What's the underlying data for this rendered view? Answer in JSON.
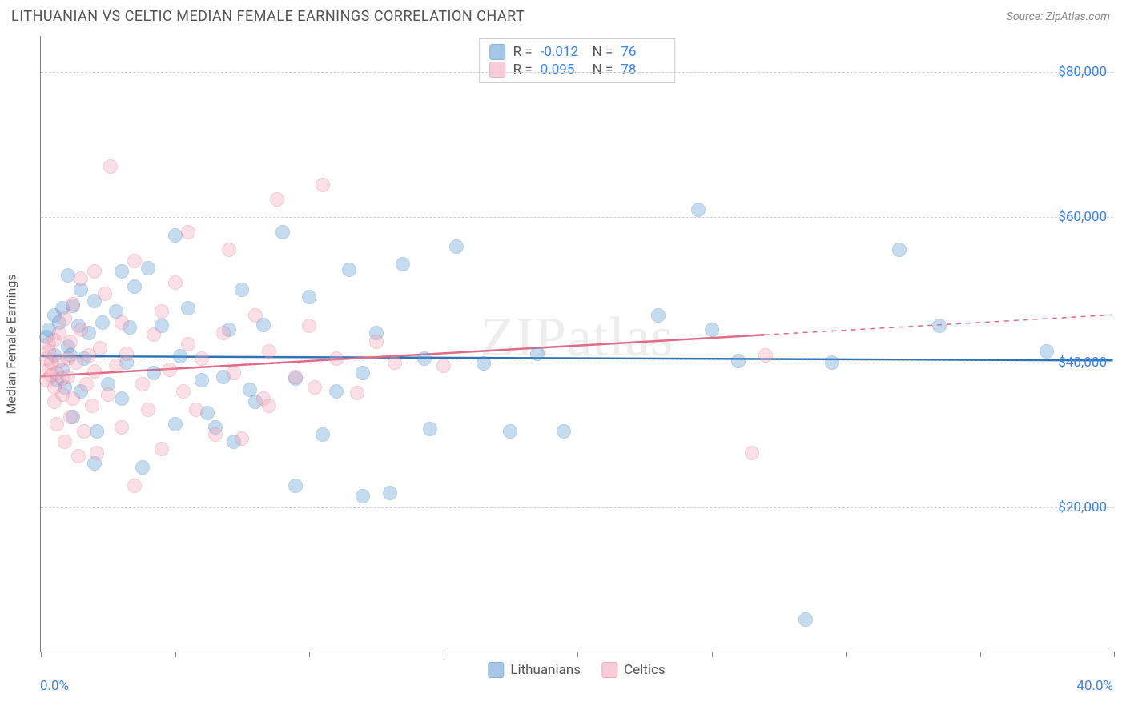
{
  "title": "LITHUANIAN VS CELTIC MEDIAN FEMALE EARNINGS CORRELATION CHART",
  "source": "Source: ZipAtlas.com",
  "watermark": "ZIPatlas",
  "chart": {
    "type": "scatter",
    "background_color": "#ffffff",
    "grid_color": "#d0d0d0",
    "axis_color": "#808080",
    "x_min": 0.0,
    "x_max": 40.0,
    "x_label_min": "0.0%",
    "x_label_max": "40.0%",
    "x_ticks": [
      0,
      5,
      10,
      15,
      20,
      25,
      30,
      35,
      40
    ],
    "y_min": 0,
    "y_max": 85000,
    "y_gridlines": [
      20000,
      40000,
      60000,
      80000
    ],
    "y_tick_labels": [
      "$20,000",
      "$40,000",
      "$60,000",
      "$80,000"
    ],
    "y_axis_title": "Median Female Earnings",
    "marker_radius": 9,
    "marker_fill_opacity": 0.35,
    "marker_stroke_opacity": 0.7,
    "trend_stroke_width": 2.5,
    "series": [
      {
        "name": "Lithuanians",
        "color": "#5b9bd5",
        "stroke": "#2e74b5",
        "r": "-0.012",
        "n": "76",
        "trend": {
          "y_at_xmin": 40800,
          "y_at_xmax": 40200,
          "solid_until_x": 40
        },
        "points": [
          [
            0.2,
            43500
          ],
          [
            0.3,
            44500
          ],
          [
            0.5,
            41000
          ],
          [
            0.5,
            46500
          ],
          [
            0.6,
            37500
          ],
          [
            0.7,
            45500
          ],
          [
            0.8,
            47500
          ],
          [
            0.8,
            39000
          ],
          [
            0.9,
            36500
          ],
          [
            1.0,
            52000
          ],
          [
            1.0,
            42200
          ],
          [
            1.1,
            41000
          ],
          [
            1.2,
            47800
          ],
          [
            1.2,
            32500
          ],
          [
            1.4,
            45000
          ],
          [
            1.5,
            50000
          ],
          [
            1.5,
            36000
          ],
          [
            1.6,
            40500
          ],
          [
            1.8,
            44000
          ],
          [
            2.0,
            48500
          ],
          [
            2.0,
            26000
          ],
          [
            2.1,
            30500
          ],
          [
            2.3,
            45500
          ],
          [
            2.5,
            37000
          ],
          [
            2.8,
            47000
          ],
          [
            3.0,
            52500
          ],
          [
            3.0,
            35000
          ],
          [
            3.2,
            40000
          ],
          [
            3.3,
            44800
          ],
          [
            3.5,
            50500
          ],
          [
            3.8,
            25500
          ],
          [
            4.0,
            53000
          ],
          [
            4.2,
            38500
          ],
          [
            4.5,
            45000
          ],
          [
            5.0,
            57500
          ],
          [
            5.0,
            31500
          ],
          [
            5.2,
            40800
          ],
          [
            5.5,
            47500
          ],
          [
            6.0,
            37500
          ],
          [
            6.2,
            33000
          ],
          [
            6.5,
            31000
          ],
          [
            6.8,
            38000
          ],
          [
            7.0,
            44500
          ],
          [
            7.2,
            29000
          ],
          [
            7.5,
            50000
          ],
          [
            7.8,
            36200
          ],
          [
            8.0,
            34500
          ],
          [
            8.3,
            45200
          ],
          [
            9.0,
            58000
          ],
          [
            9.5,
            37800
          ],
          [
            9.5,
            23000
          ],
          [
            10.0,
            49000
          ],
          [
            10.5,
            30000
          ],
          [
            11.0,
            36000
          ],
          [
            11.5,
            52800
          ],
          [
            12.0,
            38500
          ],
          [
            12.0,
            21500
          ],
          [
            12.5,
            44000
          ],
          [
            13.0,
            22000
          ],
          [
            13.5,
            53500
          ],
          [
            14.3,
            40500
          ],
          [
            14.5,
            30800
          ],
          [
            15.5,
            56000
          ],
          [
            16.5,
            39800
          ],
          [
            17.5,
            30500
          ],
          [
            18.5,
            41200
          ],
          [
            19.5,
            30500
          ],
          [
            23.0,
            46500
          ],
          [
            24.5,
            61000
          ],
          [
            25.0,
            44500
          ],
          [
            26.0,
            40200
          ],
          [
            28.5,
            4500
          ],
          [
            29.5,
            40000
          ],
          [
            32.0,
            55500
          ],
          [
            33.5,
            45000
          ],
          [
            37.5,
            41500
          ]
        ]
      },
      {
        "name": "Celtics",
        "color": "#f4a6b8",
        "stroke": "#e06b87",
        "r": "0.095",
        "n": "78",
        "trend": {
          "y_at_xmin": 38000,
          "y_at_xmax": 46500,
          "solid_until_x": 27
        },
        "points": [
          [
            0.2,
            37500
          ],
          [
            0.2,
            40500
          ],
          [
            0.3,
            39000
          ],
          [
            0.3,
            41500
          ],
          [
            0.3,
            42500
          ],
          [
            0.4,
            38200
          ],
          [
            0.4,
            40000
          ],
          [
            0.5,
            43000
          ],
          [
            0.5,
            34500
          ],
          [
            0.5,
            36500
          ],
          [
            0.6,
            31500
          ],
          [
            0.6,
            38500
          ],
          [
            0.7,
            44000
          ],
          [
            0.7,
            40200
          ],
          [
            0.8,
            35500
          ],
          [
            0.8,
            37800
          ],
          [
            0.9,
            46000
          ],
          [
            0.9,
            29000
          ],
          [
            1.0,
            40500
          ],
          [
            1.0,
            38000
          ],
          [
            1.1,
            32500
          ],
          [
            1.1,
            42800
          ],
          [
            1.2,
            48000
          ],
          [
            1.2,
            35000
          ],
          [
            1.3,
            40000
          ],
          [
            1.4,
            27000
          ],
          [
            1.5,
            44500
          ],
          [
            1.5,
            51500
          ],
          [
            1.6,
            30500
          ],
          [
            1.7,
            37000
          ],
          [
            1.8,
            41000
          ],
          [
            1.9,
            34000
          ],
          [
            2.0,
            52500
          ],
          [
            2.0,
            38800
          ],
          [
            2.1,
            27500
          ],
          [
            2.2,
            42000
          ],
          [
            2.4,
            49500
          ],
          [
            2.5,
            35500
          ],
          [
            2.6,
            67000
          ],
          [
            2.8,
            39500
          ],
          [
            3.0,
            45500
          ],
          [
            3.0,
            31000
          ],
          [
            3.2,
            41200
          ],
          [
            3.5,
            23000
          ],
          [
            3.5,
            54000
          ],
          [
            3.8,
            37000
          ],
          [
            4.0,
            33500
          ],
          [
            4.2,
            43800
          ],
          [
            4.5,
            47000
          ],
          [
            4.5,
            28000
          ],
          [
            4.8,
            39000
          ],
          [
            5.0,
            51000
          ],
          [
            5.3,
            36000
          ],
          [
            5.5,
            42500
          ],
          [
            5.5,
            58000
          ],
          [
            5.8,
            33500
          ],
          [
            6.0,
            40500
          ],
          [
            6.5,
            30000
          ],
          [
            6.8,
            44000
          ],
          [
            7.0,
            55500
          ],
          [
            7.2,
            38500
          ],
          [
            7.5,
            29500
          ],
          [
            8.0,
            46500
          ],
          [
            8.3,
            35000
          ],
          [
            8.5,
            41500
          ],
          [
            8.5,
            34000
          ],
          [
            8.8,
            62500
          ],
          [
            9.5,
            38000
          ],
          [
            10.0,
            45000
          ],
          [
            10.2,
            36500
          ],
          [
            10.5,
            64500
          ],
          [
            11.0,
            40500
          ],
          [
            11.8,
            35800
          ],
          [
            12.5,
            42800
          ],
          [
            13.2,
            40000
          ],
          [
            15.0,
            39500
          ],
          [
            26.5,
            27500
          ],
          [
            27.0,
            41000
          ]
        ]
      }
    ]
  },
  "colors": {
    "text_primary": "#545454",
    "text_muted": "#888888",
    "tick_label": "#3b82f6"
  }
}
